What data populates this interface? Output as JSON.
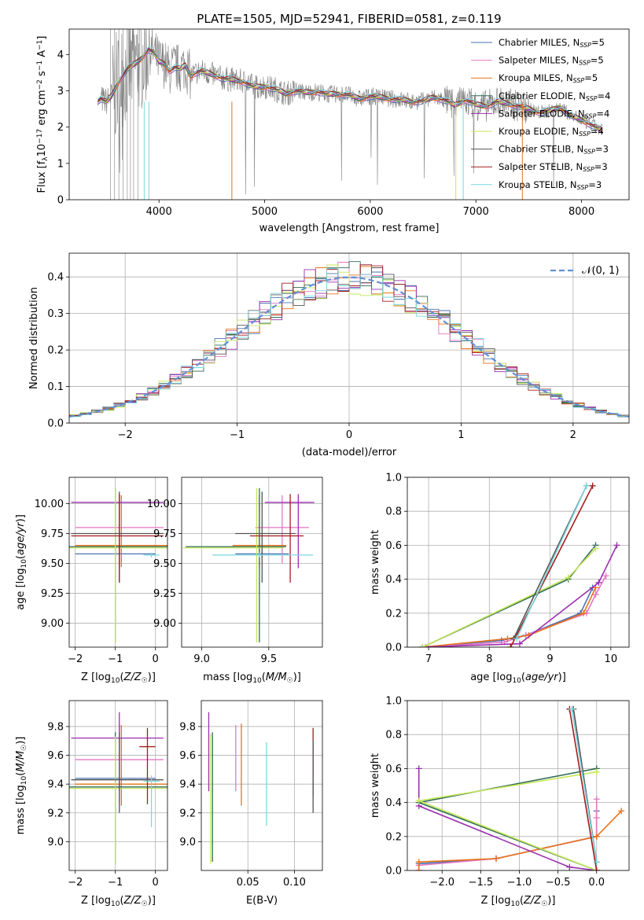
{
  "colors": {
    "Chabrier MILES": "#4c72b0",
    "Salpeter MILES": "#e377c2",
    "Kroupa MILES": "#e8731a",
    "Chabrier ELODIE": "#2f6b54",
    "Salpeter ELODIE": "#9b2fae",
    "Kroupa ELODIE": "#c6e65a",
    "Chabrier STELIB": "#555555",
    "Salpeter STELIB": "#a41d1d",
    "Kroupa STELIB": "#7ad7e0",
    "spectrum": "#7f7f7f",
    "normal_curve": "#6190d6"
  },
  "chart_data": [
    {
      "id": "spectrum",
      "type": "line",
      "title": "PLATE=1505, MJD=52941, FIBERID=0581, z=0.119",
      "xlabel": "wavelength [Angstrom, rest frame]",
      "ylabel": "Flux [f_λ10^-17 erg cm^-2 s^-1 A^-1]",
      "xlim": [
        3150,
        8450
      ],
      "ylim": [
        0,
        4.7
      ],
      "xticks": [
        4000,
        5000,
        6000,
        7000,
        8000
      ],
      "yticks": [
        0,
        1,
        2,
        3,
        4
      ],
      "legend_position": "upper-right",
      "legend": [
        {
          "model": "Chabrier MILES",
          "label": "Chabrier MILES, N",
          "sub": "SSP",
          "tail": "=5"
        },
        {
          "model": "Salpeter MILES",
          "label": "Salpeter MILES, N",
          "sub": "SSP",
          "tail": "=5"
        },
        {
          "model": "Kroupa MILES",
          "label": "Kroupa MILES, N",
          "sub": "SSP",
          "tail": "=5"
        },
        {
          "model": "Chabrier ELODIE",
          "label": "Chabrier ELODIE, N",
          "sub": "SSP",
          "tail": "=4"
        },
        {
          "model": "Salpeter ELODIE",
          "label": "Salpeter ELODIE, N",
          "sub": "SSP",
          "tail": "=4"
        },
        {
          "model": "Kroupa ELODIE",
          "label": "Kroupa ELODIE, N",
          "sub": "SSP",
          "tail": "=4"
        },
        {
          "model": "Chabrier STELIB",
          "label": "Chabrier STELIB, N",
          "sub": "SSP",
          "tail": "=3"
        },
        {
          "model": "Salpeter STELIB",
          "label": "Salpeter STELIB, N",
          "sub": "SSP",
          "tail": "=3"
        },
        {
          "model": "Kroupa STELIB",
          "label": "Kroupa STELIB, N",
          "sub": "SSP",
          "tail": "=3"
        }
      ],
      "continuum": [
        [
          3420,
          2.72
        ],
        [
          3450,
          2.78
        ],
        [
          3500,
          2.7
        ],
        [
          3550,
          2.85
        ],
        [
          3600,
          3.15
        ],
        [
          3650,
          3.4
        ],
        [
          3700,
          3.6
        ],
        [
          3750,
          3.7
        ],
        [
          3800,
          3.8
        ],
        [
          3850,
          3.95
        ],
        [
          3900,
          4.15
        ],
        [
          3950,
          4.05
        ],
        [
          4000,
          3.8
        ],
        [
          4050,
          3.75
        ],
        [
          4100,
          3.55
        ],
        [
          4150,
          3.65
        ],
        [
          4200,
          3.6
        ],
        [
          4250,
          3.7
        ],
        [
          4300,
          3.4
        ],
        [
          4350,
          3.5
        ],
        [
          4400,
          3.55
        ],
        [
          4500,
          3.45
        ],
        [
          4600,
          3.35
        ],
        [
          4700,
          3.3
        ],
        [
          4800,
          3.25
        ],
        [
          4900,
          3.1
        ],
        [
          5000,
          3.12
        ],
        [
          5100,
          3.05
        ],
        [
          5200,
          2.92
        ],
        [
          5300,
          3.0
        ],
        [
          5400,
          2.95
        ],
        [
          5500,
          2.98
        ],
        [
          5600,
          2.9
        ],
        [
          5700,
          2.92
        ],
        [
          5800,
          2.88
        ],
        [
          5900,
          2.78
        ],
        [
          6000,
          2.85
        ],
        [
          6100,
          2.82
        ],
        [
          6200,
          2.78
        ],
        [
          6300,
          2.75
        ],
        [
          6400,
          2.7
        ],
        [
          6500,
          2.72
        ],
        [
          6600,
          2.82
        ],
        [
          6700,
          2.75
        ],
        [
          6800,
          2.6
        ],
        [
          6900,
          2.75
        ],
        [
          7000,
          2.62
        ],
        [
          7100,
          2.58
        ],
        [
          7200,
          2.7
        ],
        [
          7300,
          2.65
        ],
        [
          7400,
          2.58
        ],
        [
          7500,
          2.5
        ],
        [
          7600,
          2.4
        ],
        [
          7700,
          2.45
        ],
        [
          7800,
          2.55
        ],
        [
          7900,
          2.3
        ],
        [
          8000,
          2.2
        ],
        [
          8100,
          2.05
        ],
        [
          8200,
          1.9
        ]
      ]
    },
    {
      "id": "residuals",
      "type": "line",
      "xlabel": "(data-model)/error",
      "ylabel": "Normed distribution",
      "xlim": [
        -2.5,
        2.5
      ],
      "ylim": [
        0,
        0.465
      ],
      "xticks": [
        -2,
        -1,
        0,
        1,
        2
      ],
      "yticks": [
        0.0,
        0.1,
        0.2,
        0.3,
        0.4
      ],
      "grid": true,
      "legend_position": "upper-right",
      "legend_label": "𝒩(0, 1)",
      "bin_width": 0.1
    },
    {
      "id": "age-vs-Z",
      "type": "scatter",
      "xlabel": "Z [log10(Z/Z☉)]",
      "ylabel": "age  [log10(age/yr)]",
      "xlim": [
        -2.15,
        0.3
      ],
      "ylim": [
        8.8,
        10.22
      ],
      "xticks": [
        -2,
        -1,
        0
      ],
      "yticks": [
        9.0,
        9.25,
        9.5,
        9.75,
        10.0
      ],
      "grid": true,
      "points": [
        {
          "model": "Chabrier MILES",
          "x": -1.0,
          "xerr": [
            1.0,
            1.0
          ],
          "y": 9.58,
          "yerr": [
            0.03,
            0.03
          ]
        },
        {
          "model": "Salpeter MILES",
          "x": -0.9,
          "xerr": [
            1.1,
            1.1
          ],
          "y": 9.8,
          "yerr": [
            0.3,
            0.27
          ]
        },
        {
          "model": "Kroupa MILES",
          "x": -0.85,
          "xerr": [
            1.15,
            1.15
          ],
          "y": 9.65,
          "yerr": [
            0.18,
            0.42
          ]
        },
        {
          "model": "Chabrier ELODIE",
          "x": -1.0,
          "xerr": [
            1.3,
            1.3
          ],
          "y": 9.64,
          "yerr": [
            0.8,
            0.49
          ]
        },
        {
          "model": "Salpeter ELODIE",
          "x": -0.9,
          "xerr": [
            1.2,
            1.1
          ],
          "y": 10.01,
          "yerr": [
            0.55,
            0.07
          ]
        },
        {
          "model": "Kroupa ELODIE",
          "x": -1.0,
          "xerr": [
            1.3,
            1.3
          ],
          "y": 9.63,
          "yerr": [
            0.79,
            0.5
          ]
        },
        {
          "model": "Chabrier STELIB",
          "x": -0.9,
          "xerr": [
            1.2,
            1.1
          ],
          "y": 9.75,
          "yerr": [
            0.41,
            0.35
          ]
        },
        {
          "model": "Salpeter STELIB",
          "x": -0.9,
          "xerr": [
            1.2,
            1.1
          ],
          "y": 9.73,
          "yerr": [
            0.39,
            0.35
          ]
        },
        {
          "model": "Kroupa STELIB",
          "x": -0.1,
          "xerr": [
            0.2,
            0.2
          ],
          "y": 9.57,
          "yerr": [
            0.02,
            0.02
          ]
        }
      ]
    },
    {
      "id": "age-vs-mass",
      "type": "scatter",
      "xlabel": "mass [log10(M/M☉)]",
      "ylabel": "",
      "xlim": [
        8.85,
        9.9
      ],
      "ylim": [
        8.8,
        10.22
      ],
      "xticks": [
        9.0,
        9.5
      ],
      "yticks": [
        9.0,
        9.25,
        9.5,
        9.75,
        10.0
      ],
      "grid": true,
      "points": [
        {
          "model": "Chabrier MILES",
          "x": 9.45,
          "xerr": [
            0.2,
            0.2
          ],
          "y": 9.58,
          "yerr": [
            0.03,
            0.03
          ]
        },
        {
          "model": "Salpeter MILES",
          "x": 9.6,
          "xerr": [
            0.2,
            0.2
          ],
          "y": 9.8,
          "yerr": [
            0.3,
            0.27
          ]
        },
        {
          "model": "Kroupa MILES",
          "x": 9.43,
          "xerr": [
            0.2,
            0.2
          ],
          "y": 9.65,
          "yerr": [
            0.18,
            0.42
          ]
        },
        {
          "model": "Chabrier ELODIE",
          "x": 9.43,
          "xerr": [
            0.55,
            0.2
          ],
          "y": 9.64,
          "yerr": [
            0.8,
            0.49
          ]
        },
        {
          "model": "Salpeter ELODIE",
          "x": 9.72,
          "xerr": [
            0.25,
            0.12
          ],
          "y": 10.01,
          "yerr": [
            0.55,
            0.07
          ]
        },
        {
          "model": "Kroupa ELODIE",
          "x": 9.41,
          "xerr": [
            0.55,
            0.2
          ],
          "y": 9.63,
          "yerr": [
            0.79,
            0.5
          ]
        },
        {
          "model": "Chabrier STELIB",
          "x": 9.45,
          "xerr": [
            0.2,
            0.25
          ],
          "y": 9.75,
          "yerr": [
            0.41,
            0.35
          ]
        },
        {
          "model": "Salpeter STELIB",
          "x": 9.66,
          "xerr": [
            0.3,
            0.1
          ],
          "y": 9.73,
          "yerr": [
            0.39,
            0.35
          ]
        },
        {
          "model": "Kroupa STELIB",
          "x": 9.43,
          "xerr": [
            0.35,
            0.4
          ],
          "y": 9.57,
          "yerr": [
            0.02,
            0.02
          ]
        }
      ]
    },
    {
      "id": "weight-vs-age",
      "type": "line",
      "xlabel": "age  [log10(age/yr)]",
      "ylabel": "mass weight",
      "xlim": [
        6.65,
        10.3
      ],
      "ylim": [
        0,
        1.0
      ],
      "xticks": [
        7,
        8,
        9,
        10
      ],
      "yticks": [
        0.0,
        0.2,
        0.4,
        0.6,
        0.8,
        1.0
      ],
      "grid": true
    },
    {
      "id": "mass-vs-Z",
      "type": "scatter",
      "xlabel": "Z [log10(Z/Z☉)]",
      "ylabel": "mass [log10(M/M☉)]",
      "xlim": [
        -2.15,
        0.3
      ],
      "ylim": [
        8.8,
        9.98
      ],
      "xticks": [
        -2,
        -1,
        0
      ],
      "yticks": [
        9.0,
        9.2,
        9.4,
        9.6,
        9.8
      ],
      "grid": true,
      "points": [
        {
          "model": "Chabrier MILES",
          "x": -1.0,
          "xerr": [
            1.0,
            1.0
          ],
          "y": 9.44,
          "yerr": [
            0.02,
            0.02
          ]
        },
        {
          "model": "Salpeter MILES",
          "x": -0.9,
          "xerr": [
            1.1,
            1.1
          ],
          "y": 9.57,
          "yerr": [
            0.3,
            0.25
          ]
        },
        {
          "model": "Kroupa MILES",
          "x": -0.85,
          "xerr": [
            1.15,
            1.15
          ],
          "y": 9.4,
          "yerr": [
            0.15,
            0.41
          ]
        },
        {
          "model": "Chabrier ELODIE",
          "x": -1.0,
          "xerr": [
            1.3,
            1.3
          ],
          "y": 9.38,
          "yerr": [
            0.53,
            0.38
          ]
        },
        {
          "model": "Salpeter ELODIE",
          "x": -0.9,
          "xerr": [
            1.2,
            1.1
          ],
          "y": 9.72,
          "yerr": [
            0.37,
            0.18
          ]
        },
        {
          "model": "Kroupa ELODIE",
          "x": -1.0,
          "xerr": [
            1.3,
            1.3
          ],
          "y": 9.37,
          "yerr": [
            0.52,
            0.36
          ]
        },
        {
          "model": "Chabrier STELIB",
          "x": -0.9,
          "xerr": [
            1.2,
            1.1
          ],
          "y": 9.43,
          "yerr": [
            0.23,
            0.33
          ]
        },
        {
          "model": "Salpeter STELIB",
          "x": -0.2,
          "xerr": [
            0.2,
            0.2
          ],
          "y": 9.66,
          "yerr": [
            0.4,
            0.13
          ]
        },
        {
          "model": "Kroupa STELIB",
          "x": -0.1,
          "xerr": [
            0.2,
            0.2
          ],
          "y": 9.42,
          "yerr": [
            0.32,
            0.04
          ]
        }
      ]
    },
    {
      "id": "mass-vs-ebv",
      "type": "scatter",
      "xlabel": "E(B-V)",
      "ylabel": "",
      "xlim": [
        0.0,
        0.13
      ],
      "ylim": [
        8.8,
        9.98
      ],
      "xticks": [
        0.05,
        0.1
      ],
      "yticks": [
        9.0,
        9.2,
        9.4,
        9.6,
        9.8
      ],
      "grid": true,
      "points": [
        {
          "model": "Salpeter ELODIE",
          "x": 0.008,
          "y": 9.72,
          "yerr": [
            0.37,
            0.18
          ]
        },
        {
          "model": "Kroupa ELODIE",
          "x": 0.01,
          "y": 9.37,
          "yerr": [
            0.52,
            0.38
          ]
        },
        {
          "model": "Chabrier ELODIE",
          "x": 0.012,
          "y": 9.38,
          "yerr": [
            0.52,
            0.38
          ]
        },
        {
          "model": "Salpeter MILES",
          "x": 0.037,
          "y": 9.57,
          "yerr": [
            0.22,
            0.24
          ]
        },
        {
          "model": "Kroupa MILES",
          "x": 0.043,
          "y": 9.48,
          "yerr": [
            0.23,
            0.34
          ]
        },
        {
          "model": "Kroupa STELIB",
          "x": 0.07,
          "y": 9.4,
          "yerr": [
            0.29,
            0.29
          ]
        },
        {
          "model": "Salpeter STELIB",
          "x": 0.12,
          "y": 9.55,
          "yerr": [
            0.23,
            0.24
          ]
        },
        {
          "model": "Chabrier STELIB",
          "x": 0.12,
          "y": 9.5,
          "yerr": [
            0.3,
            0.2
          ]
        }
      ]
    },
    {
      "id": "weight-vs-Z",
      "type": "line",
      "xlabel": "Z [log10(Z/Z☉)]",
      "ylabel": "mass weight",
      "xlim": [
        -2.45,
        0.42
      ],
      "ylim": [
        0,
        1.0
      ],
      "xticks": [
        -2.0,
        -1.5,
        -1.0,
        -0.5,
        0.0
      ],
      "yticks": [
        0.0,
        0.2,
        0.4,
        0.6,
        0.8,
        1.0
      ],
      "grid": true
    }
  ],
  "weights": {
    "Chabrier MILES": {
      "age": [
        6.9,
        8.2,
        8.6,
        9.5,
        9.7
      ],
      "Z": [
        -2.3,
        -2.3,
        -1.3,
        0.0,
        0.0
      ],
      "w": [
        0.0,
        0.04,
        0.07,
        0.2,
        0.35
      ]
    },
    "Salpeter MILES": {
      "age": [
        6.95,
        8.25,
        8.6,
        9.6,
        9.75,
        9.92
      ],
      "Z": [
        -2.3,
        -2.3,
        -1.3,
        0.0,
        0.0,
        0.0
      ],
      "w": [
        0.0,
        0.03,
        0.07,
        0.2,
        0.31,
        0.42
      ]
    },
    "Kroupa MILES": {
      "age": [
        6.9,
        8.3,
        8.65,
        9.55,
        9.75
      ],
      "Z": [
        -2.3,
        -2.3,
        -1.3,
        0.0,
        0.32
      ],
      "w": [
        0.0,
        0.05,
        0.07,
        0.2,
        0.35
      ]
    },
    "Chabrier ELODIE": {
      "age": [
        6.9,
        9.3,
        9.75
      ],
      "Z": [
        0.0,
        -2.3,
        0.0
      ],
      "w": [
        0.0,
        0.4,
        0.6
      ]
    },
    "Salpeter ELODIE": {
      "age": [
        6.9,
        8.5,
        9.8,
        10.1
      ],
      "Z": [
        0.0,
        -0.35,
        -2.3,
        -2.3
      ],
      "w": [
        0.0,
        0.02,
        0.38,
        0.6
      ]
    },
    "Kroupa ELODIE": {
      "age": [
        6.9,
        9.3,
        9.75
      ],
      "Z": [
        0.0,
        -2.3,
        0.0
      ],
      "w": [
        0.0,
        0.41,
        0.58
      ]
    },
    "Chabrier STELIB": {
      "age": [
        8.4,
        9.6
      ],
      "Z": [
        0.0,
        -0.3
      ],
      "w": [
        0.05,
        0.95
      ]
    },
    "Salpeter STELIB": {
      "age": [
        8.35,
        9.7
      ],
      "Z": [
        0.0,
        -0.35
      ],
      "w": [
        0.0,
        0.95
      ]
    },
    "Kroupa STELIB": {
      "age": [
        8.45,
        9.6
      ],
      "Z": [
        0.0,
        -0.32
      ],
      "w": [
        0.05,
        0.95
      ]
    }
  }
}
